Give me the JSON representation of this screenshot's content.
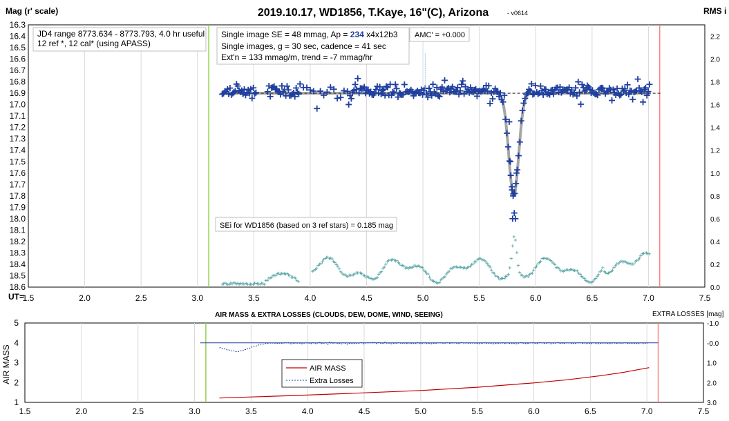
{
  "chart_data": [
    {
      "type": "scatter",
      "title": "2019.10.17, WD1856, T.Kaye, 16\"(C), Arizona",
      "version": "- v0614",
      "ylabel": "Mag (r' scale)",
      "y2label": "RMS i",
      "xlabel": "UT=",
      "xlim": [
        1.5,
        7.5
      ],
      "ylim": [
        16.3,
        18.6
      ],
      "y2lim": [
        0.0,
        2.3
      ],
      "xticks": [
        "1.5",
        "2.0",
        "2.5",
        "3.0",
        "3.5",
        "4.0",
        "4.5",
        "5.0",
        "5.5",
        "6.0",
        "6.5",
        "7.0",
        "7.5"
      ],
      "yticks": [
        "16.3",
        "16.4",
        "16.5",
        "16.6",
        "16.7",
        "16.8",
        "16.9",
        "17.0",
        "17.1",
        "17.2",
        "17.3",
        "17.4",
        "17.5",
        "17.6",
        "17.7",
        "17.8",
        "17.9",
        "18.0",
        "18.1",
        "18.2",
        "18.3",
        "18.4",
        "18.5",
        "18.6"
      ],
      "y2ticks": [
        "2.2",
        "2.0",
        "1.8",
        "1.6",
        "1.4",
        "1.2",
        "1.0",
        "0.8",
        "0.6",
        "0.4",
        "0.2",
        "0.0"
      ],
      "vlines": {
        "start_ut": 3.1,
        "end_ut": 7.1
      },
      "baseline_mag": 16.9,
      "transit": {
        "center_ut": 5.805,
        "depth_mag": 0.9,
        "half_width_hr": 0.065
      },
      "annotations": {
        "box1": [
          "JD4 range 8773.634 - 8773.793, 4.0 hr useful",
          " 12 ref *, 12 cal* (using APASS)"
        ],
        "box2_line1_pre": "Single image SE = 48 mmag, Ap = ",
        "box2_line1_ap": "234",
        "box2_line1_post": " x4x12b3",
        "box2_line2": "Single images, g = 30 sec, cadence = 41 sec",
        "box2_line3": "Ext'n = 133 mmag/m, trend = -7 mmag/hr",
        "amc": "AMC' = +0.000",
        "sei": "SEi for WD1856 (based on 3 ref stars) = 0.185 mag"
      },
      "series": [
        {
          "name": "",
          "color": "#1f3f9f",
          "marker": "plus",
          "x_range": [
            3.22,
            7.02
          ],
          "y_mag_typical": 16.88,
          "rms_scatter_mag": 0.048
        },
        {
          "name": "",
          "color": "#5aa6a6",
          "marker": "plus-small",
          "x_range": [
            3.22,
            7.02
          ]
        }
      ]
    },
    {
      "type": "line",
      "title": "AIR MASS & EXTRA LOSSES (CLOUDS, DEW, DOME, WIND, SEEING)",
      "ylabel": "AIR MASS",
      "y2label": "EXTRA LOSSES [mag]",
      "xlim": [
        1.5,
        7.5
      ],
      "ylim": [
        1,
        5
      ],
      "y2lim": [
        -1.0,
        3.0
      ],
      "xticks": [
        "1.5",
        "2.0",
        "2.5",
        "3.0",
        "3.5",
        "4.0",
        "4.5",
        "5.0",
        "5.5",
        "6.0",
        "6.5",
        "7.0",
        "7.5"
      ],
      "yticks": [
        "5",
        "4",
        "3",
        "2",
        "1"
      ],
      "y2ticks": [
        "-1.0",
        "-0.0",
        "1.0",
        "2.0",
        "3.0"
      ],
      "vlines": {
        "start_ut": 3.1,
        "end_ut": 7.1
      },
      "legend": {
        "position": "center",
        "entries": [
          "AIR MASS",
          "Extra Losses"
        ]
      },
      "series": [
        {
          "name": "AIR MASS",
          "color": "#c00000",
          "x": [
            3.22,
            3.5,
            4.0,
            4.5,
            5.0,
            5.5,
            6.0,
            6.3,
            6.6,
            6.8,
            7.02
          ],
          "values": [
            1.22,
            1.27,
            1.37,
            1.48,
            1.6,
            1.76,
            1.98,
            2.14,
            2.35,
            2.52,
            2.75
          ]
        },
        {
          "name": "Extra Losses",
          "color": "#1f3f9f",
          "x_range": [
            3.22,
            7.02
          ],
          "typical_mag": 0.0
        }
      ]
    }
  ]
}
